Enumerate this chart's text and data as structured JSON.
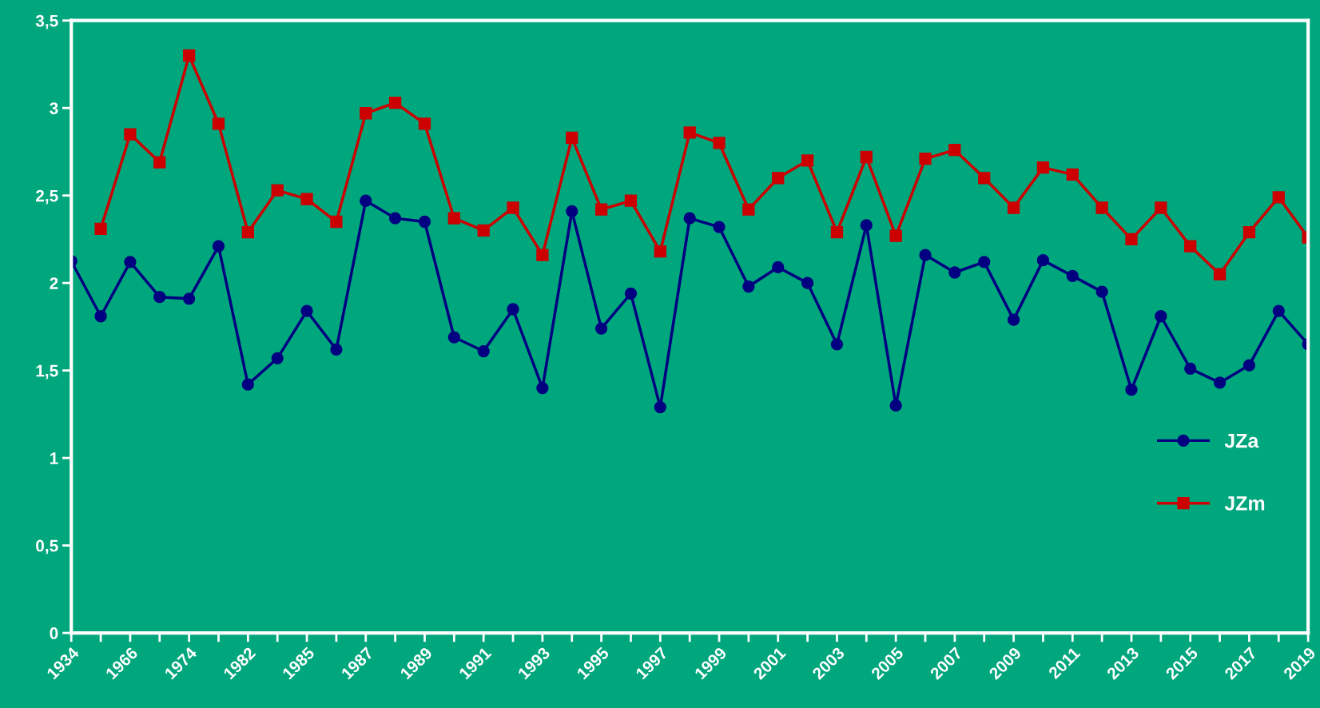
{
  "chart_data": {
    "type": "line",
    "categories": [
      "1934",
      null,
      "1966",
      null,
      "1974",
      null,
      "1982",
      null,
      "1985",
      null,
      "1987",
      null,
      "1989",
      null,
      "1991",
      null,
      "1993",
      null,
      "1995",
      null,
      "1997",
      null,
      "1999",
      null,
      "2001",
      null,
      "2003",
      null,
      "2005",
      null,
      "2007",
      null,
      "2009",
      null,
      "2011",
      null,
      "2013",
      null,
      "2015",
      null,
      "2017",
      null,
      "2019"
    ],
    "series": [
      {
        "name": "JZa",
        "color": "#000080",
        "marker": "circle",
        "values": [
          2.125,
          1.81,
          2.12,
          1.92,
          1.91,
          2.21,
          1.42,
          1.57,
          1.84,
          1.62,
          2.47,
          2.37,
          2.35,
          1.69,
          1.61,
          1.85,
          1.4,
          2.41,
          1.74,
          1.94,
          1.29,
          2.37,
          2.32,
          1.98,
          2.09,
          2.0,
          1.65,
          2.33,
          1.3,
          2.16,
          2.06,
          2.12,
          1.79,
          2.13,
          2.04,
          1.95,
          1.39,
          1.81,
          1.51,
          1.43,
          1.53,
          1.84,
          1.65
        ]
      },
      {
        "name": "JZm",
        "color": "#cc0000",
        "marker": "square",
        "values": [
          null,
          2.31,
          2.85,
          2.69,
          3.3,
          2.91,
          2.29,
          2.53,
          2.48,
          2.35,
          2.97,
          3.03,
          2.91,
          2.37,
          2.3,
          2.43,
          2.16,
          2.83,
          2.42,
          2.47,
          2.18,
          2.86,
          2.8,
          2.42,
          2.6,
          2.7,
          2.29,
          2.72,
          2.27,
          2.71,
          2.76,
          2.6,
          2.43,
          2.66,
          2.62,
          2.43,
          2.25,
          2.43,
          2.21,
          2.05,
          2.29,
          2.49,
          2.26
        ]
      }
    ],
    "ylim": [
      0,
      3.5
    ],
    "yticks": [
      0,
      {
        "value": 0.5,
        "label": "0,5"
      },
      1,
      {
        "value": 1.5,
        "label": "1,5"
      },
      2,
      {
        "value": 2.5,
        "label": "2,5"
      },
      3,
      {
        "value": 3.5,
        "label": "3,5"
      }
    ],
    "grid": false,
    "legend": "lower right",
    "line_style": "solid"
  }
}
